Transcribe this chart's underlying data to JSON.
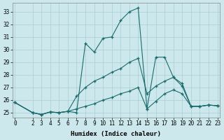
{
  "xlabel": "Humidex (Indice chaleur)",
  "bg_color": "#cce8ec",
  "grid_color": "#aacdd4",
  "line_color": "#1a6b6b",
  "xlim": [
    -0.3,
    23.3
  ],
  "ylim": [
    24.6,
    33.7
  ],
  "yticks": [
    25,
    26,
    27,
    28,
    29,
    30,
    31,
    32,
    33
  ],
  "xticks": [
    0,
    2,
    3,
    4,
    5,
    6,
    7,
    8,
    9,
    10,
    11,
    12,
    13,
    14,
    15,
    16,
    17,
    18,
    19,
    20,
    21,
    22,
    23
  ],
  "s1_x": [
    0,
    2,
    3,
    4,
    5,
    6,
    7,
    8,
    9,
    10,
    11,
    12,
    13,
    14,
    15,
    16,
    17,
    18,
    19,
    20,
    21,
    22,
    23
  ],
  "s1_y": [
    25.8,
    25.0,
    24.85,
    25.05,
    25.0,
    25.1,
    25.0,
    30.5,
    29.8,
    30.9,
    31.0,
    32.3,
    33.0,
    33.3,
    25.3,
    29.4,
    29.4,
    27.8,
    27.1,
    25.5,
    25.5,
    25.6,
    25.55
  ],
  "s2_x": [
    0,
    2,
    3,
    4,
    5,
    6,
    7,
    8,
    9,
    10,
    11,
    12,
    13,
    14,
    15,
    16,
    17,
    18,
    19,
    20,
    21,
    22,
    23
  ],
  "s2_y": [
    25.8,
    25.0,
    24.85,
    25.05,
    25.0,
    25.1,
    26.3,
    27.0,
    27.5,
    27.8,
    28.2,
    28.5,
    29.0,
    29.3,
    26.5,
    27.1,
    27.5,
    27.8,
    27.3,
    25.5,
    25.5,
    25.6,
    25.55
  ],
  "s3_x": [
    0,
    2,
    3,
    4,
    5,
    6,
    7,
    8,
    9,
    10,
    11,
    12,
    13,
    14,
    15,
    16,
    17,
    18,
    19,
    20,
    21,
    22,
    23
  ],
  "s3_y": [
    25.8,
    25.0,
    24.85,
    25.05,
    25.0,
    25.1,
    25.3,
    25.5,
    25.7,
    26.0,
    26.2,
    26.5,
    26.7,
    27.0,
    25.3,
    25.9,
    26.5,
    26.8,
    26.5,
    25.5,
    25.5,
    25.6,
    25.55
  ],
  "tick_fontsize": 5.5,
  "xlabel_fontsize": 6.5,
  "marker_size": 3.5,
  "line_width": 0.8
}
